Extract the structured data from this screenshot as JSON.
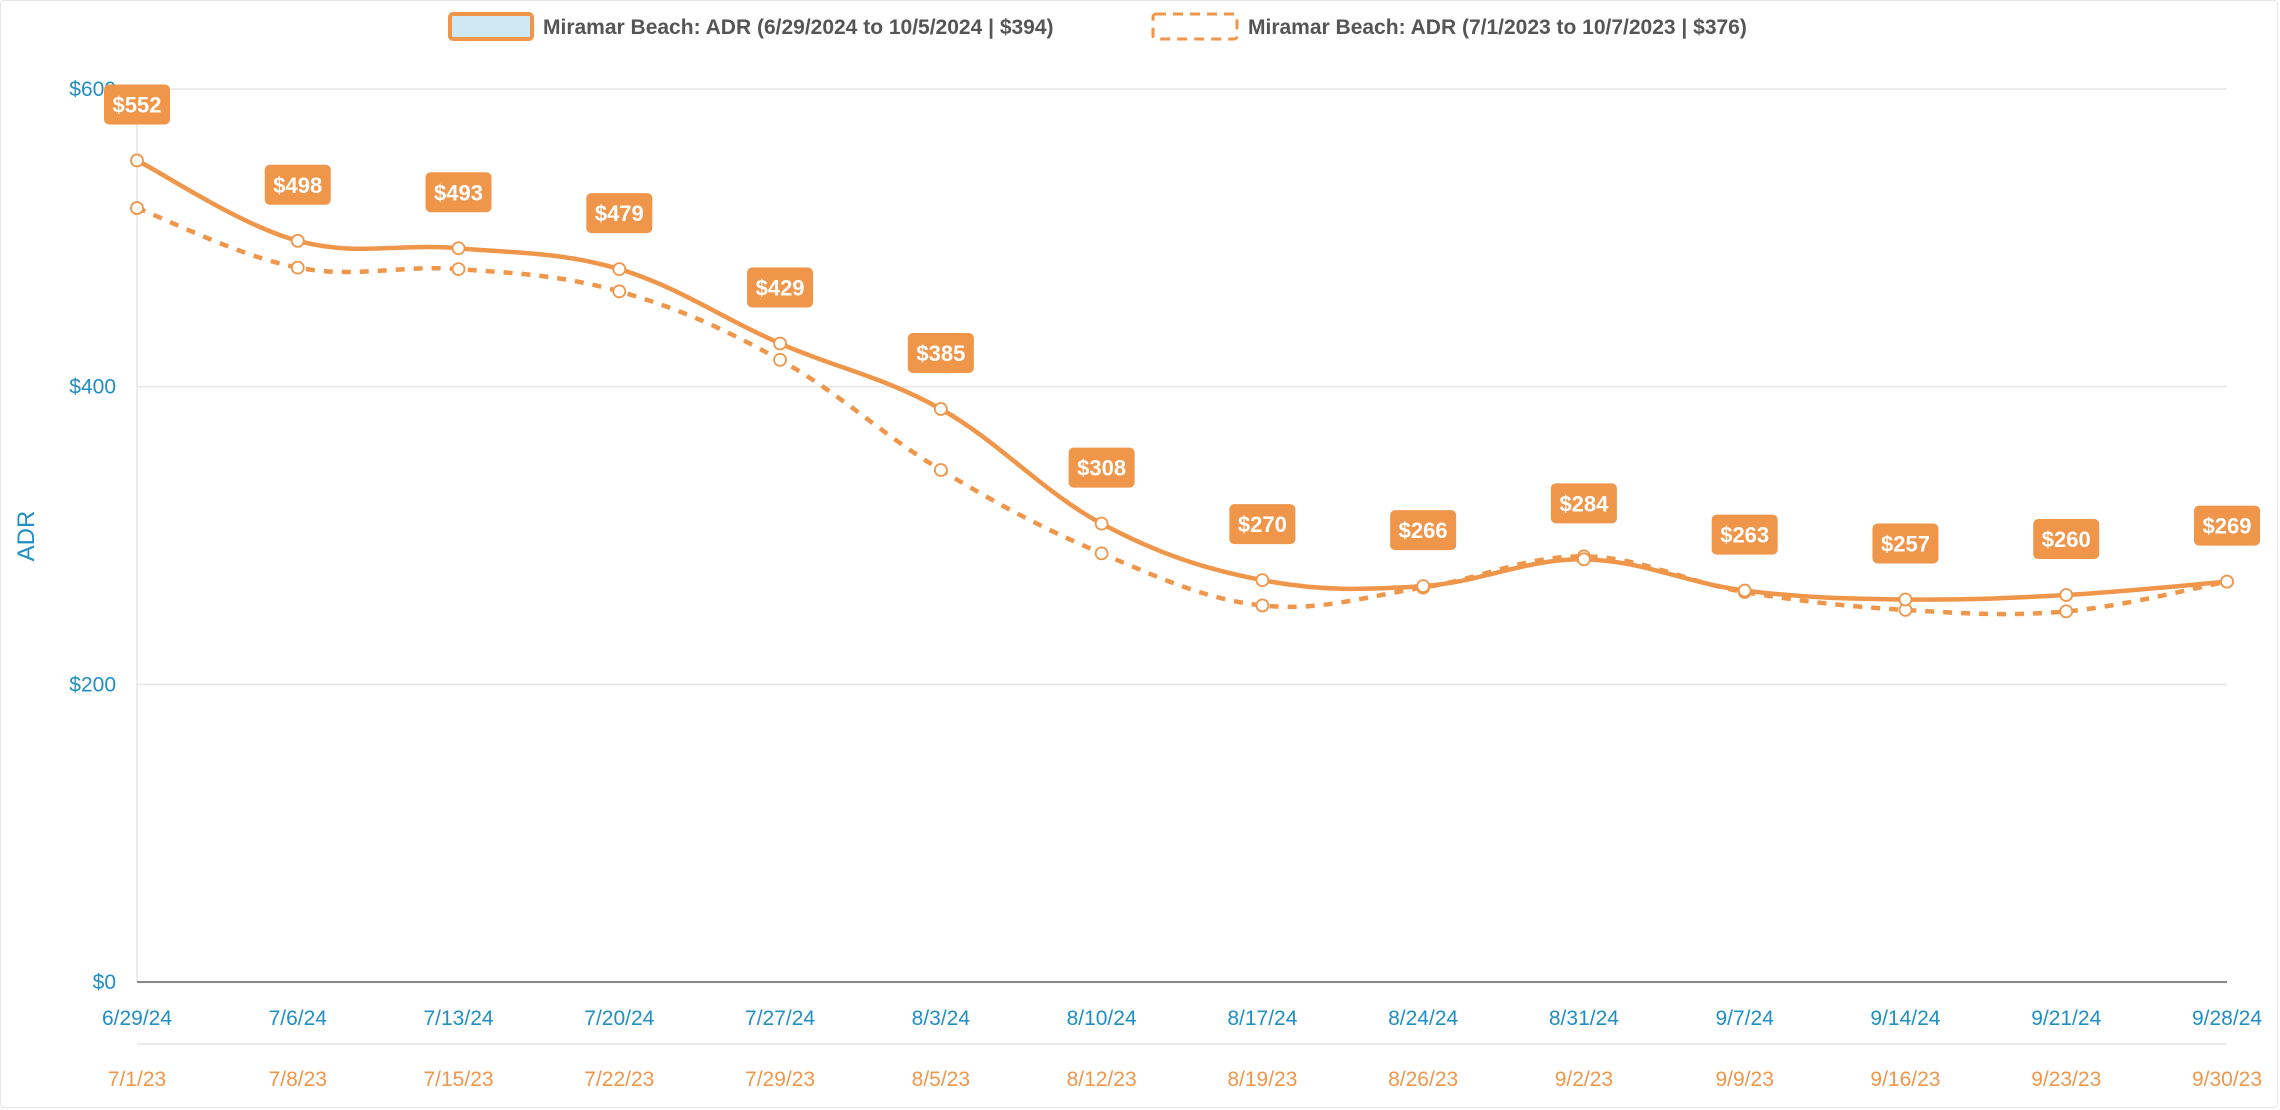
{
  "chart_data": {
    "type": "line",
    "ylabel": "ADR",
    "ylim": [
      0,
      600
    ],
    "y_ticks": [
      "$0",
      "$200",
      "$400",
      "$600"
    ],
    "y_tick_values": [
      0,
      200,
      400,
      600
    ],
    "x_current": [
      "6/29/24",
      "7/6/24",
      "7/13/24",
      "7/20/24",
      "7/27/24",
      "8/3/24",
      "8/10/24",
      "8/17/24",
      "8/24/24",
      "8/31/24",
      "9/7/24",
      "9/14/24",
      "9/21/24",
      "9/28/24"
    ],
    "x_previous": [
      "7/1/23",
      "7/8/23",
      "7/15/23",
      "7/22/23",
      "7/29/23",
      "8/5/23",
      "8/12/23",
      "8/19/23",
      "8/26/23",
      "9/2/23",
      "9/9/23",
      "9/16/23",
      "9/23/23",
      "9/30/23"
    ],
    "grid": true,
    "legend_position": "top-center",
    "series": [
      {
        "name": "Miramar Beach: ADR (6/29/2024 to 10/5/2024 | $394)",
        "style": "solid",
        "color": "#f0964a",
        "values": [
          552,
          498,
          493,
          479,
          429,
          385,
          308,
          270,
          266,
          284,
          263,
          257,
          260,
          269
        ],
        "data_labels": [
          "$552",
          "$498",
          "$493",
          "$479",
          "$429",
          "$385",
          "$308",
          "$270",
          "$266",
          "$284",
          "$263",
          "$257",
          "$260",
          "$269"
        ]
      },
      {
        "name": "Miramar Beach: ADR (7/1/2023 to 10/7/2023 | $376)",
        "style": "dashed",
        "color": "#f0964a",
        "values": [
          520,
          480,
          479,
          464,
          418,
          344,
          288,
          253,
          265,
          286,
          262,
          250,
          249,
          269
        ]
      }
    ]
  },
  "colors": {
    "accent": "#f0964a",
    "axis_text": "#1f8fc4",
    "legend_fill": "#cfe8f3",
    "grid": "#e6e6e6"
  }
}
